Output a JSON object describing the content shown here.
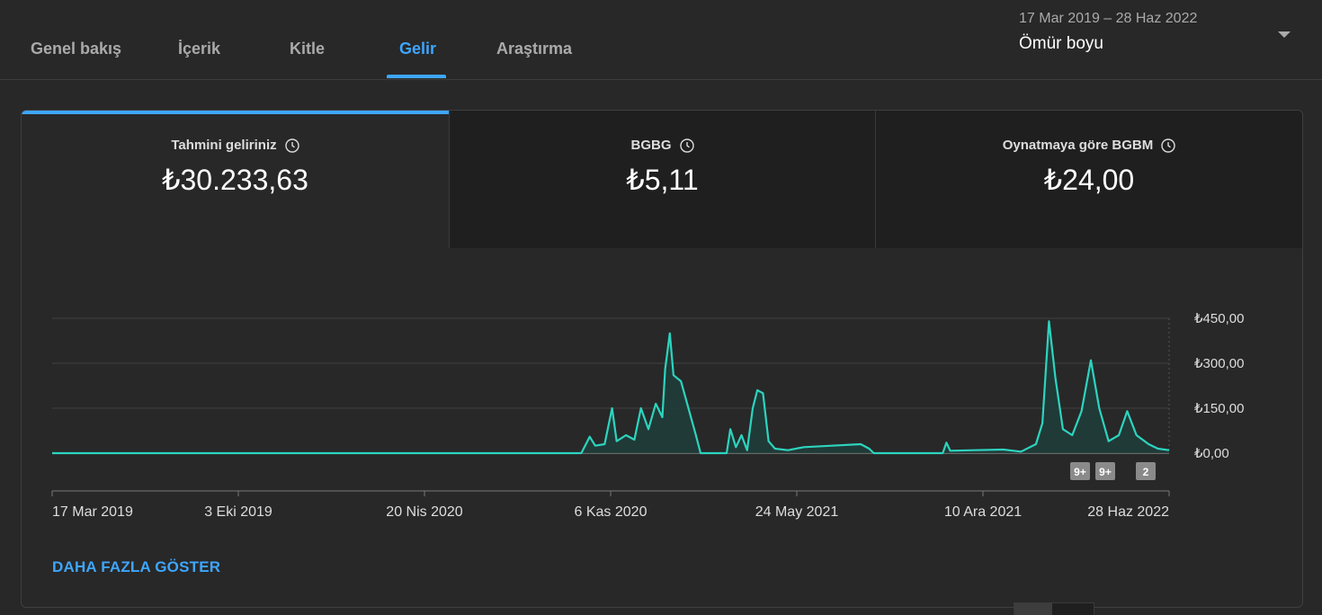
{
  "tabs": [
    {
      "label": "Genel bakış"
    },
    {
      "label": "İçerik"
    },
    {
      "label": "Kitle"
    },
    {
      "label": "Gelir"
    },
    {
      "label": "Araştırma"
    }
  ],
  "date_range": {
    "range": "17 Mar 2019 – 28 Haz 2022",
    "period": "Ömür boyu"
  },
  "metrics": [
    {
      "label": "Tahmini geliriniz",
      "value": "₺30.233,63"
    },
    {
      "label": "BGBG",
      "value": "₺5,11"
    },
    {
      "label": "Oynatmaya göre BGBM",
      "value": "₺24,00"
    }
  ],
  "show_more": "DAHA FAZLA GÖSTER",
  "colors": {
    "accent": "#3ea6ff",
    "line": "#2dd4bf"
  },
  "chart_data": {
    "type": "area",
    "x_ticks": [
      "17 Mar 2019",
      "3 Eki 2019",
      "20 Nis 2020",
      "6 Kas 2020",
      "24 May 2021",
      "10 Ara 2021",
      "28 Haz 2022"
    ],
    "y_ticks": [
      "₺450,00",
      "₺300,00",
      "₺150,00",
      "₺0,00"
    ],
    "ylim": [
      0,
      450
    ],
    "badges": [
      "9+",
      "9+",
      "2"
    ],
    "series": [
      {
        "points": [
          [
            "2019-03-17",
            0
          ],
          [
            "2020-10-05",
            0
          ],
          [
            "2020-10-14",
            55
          ],
          [
            "2020-10-20",
            25
          ],
          [
            "2020-10-30",
            30
          ],
          [
            "2020-11-07",
            150
          ],
          [
            "2020-11-12",
            40
          ],
          [
            "2020-11-22",
            60
          ],
          [
            "2020-12-01",
            45
          ],
          [
            "2020-12-08",
            150
          ],
          [
            "2020-12-16",
            80
          ],
          [
            "2020-12-24",
            165
          ],
          [
            "2020-12-31",
            120
          ],
          [
            "2021-01-03",
            280
          ],
          [
            "2021-01-08",
            400
          ],
          [
            "2021-01-12",
            260
          ],
          [
            "2021-01-20",
            240
          ],
          [
            "2021-01-28",
            150
          ],
          [
            "2021-02-05",
            60
          ],
          [
            "2021-02-10",
            0
          ],
          [
            "2021-03-10",
            0
          ],
          [
            "2021-03-14",
            80
          ],
          [
            "2021-03-20",
            20
          ],
          [
            "2021-03-26",
            60
          ],
          [
            "2021-04-01",
            10
          ],
          [
            "2021-04-07",
            150
          ],
          [
            "2021-04-12",
            210
          ],
          [
            "2021-04-18",
            200
          ],
          [
            "2021-04-24",
            40
          ],
          [
            "2021-05-01",
            15
          ],
          [
            "2021-05-15",
            10
          ],
          [
            "2021-06-01",
            20
          ],
          [
            "2021-07-01",
            25
          ],
          [
            "2021-08-01",
            30
          ],
          [
            "2021-08-10",
            15
          ],
          [
            "2021-08-15",
            0
          ],
          [
            "2021-10-28",
            0
          ],
          [
            "2021-11-01",
            35
          ],
          [
            "2021-11-05",
            8
          ],
          [
            "2021-12-01",
            10
          ],
          [
            "2022-01-01",
            12
          ],
          [
            "2022-01-20",
            5
          ],
          [
            "2022-02-05",
            30
          ],
          [
            "2022-02-12",
            100
          ],
          [
            "2022-02-19",
            440
          ],
          [
            "2022-02-26",
            250
          ],
          [
            "2022-03-06",
            80
          ],
          [
            "2022-03-16",
            60
          ],
          [
            "2022-03-26",
            140
          ],
          [
            "2022-04-05",
            310
          ],
          [
            "2022-04-14",
            150
          ],
          [
            "2022-04-24",
            40
          ],
          [
            "2022-05-05",
            60
          ],
          [
            "2022-05-14",
            140
          ],
          [
            "2022-05-24",
            60
          ],
          [
            "2022-06-06",
            30
          ],
          [
            "2022-06-16",
            15
          ],
          [
            "2022-06-28",
            10
          ]
        ]
      }
    ]
  }
}
